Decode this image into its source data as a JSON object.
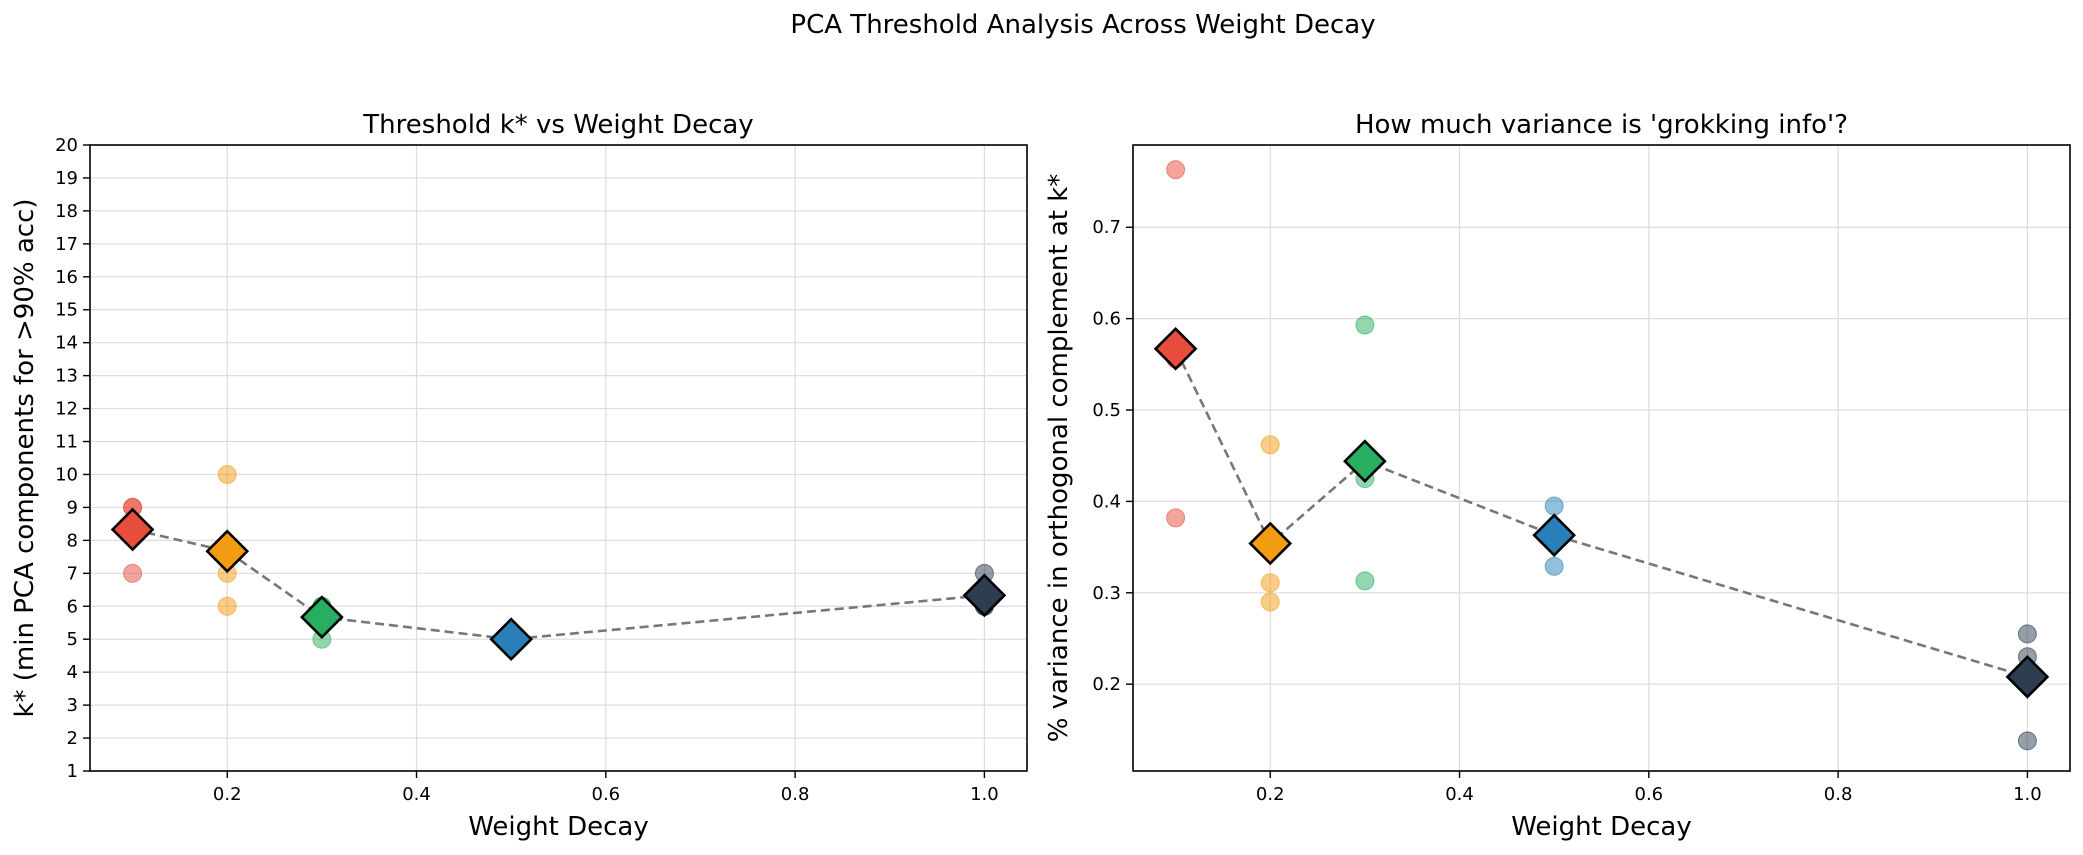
{
  "figure": {
    "suptitle": "PCA Threshold Analysis Across Weight Decay",
    "colors": {
      "0.1": "#e74c3c",
      "0.2": "#f39c12",
      "0.3": "#27ae60",
      "0.5": "#2980b9",
      "1.0": "#2c3e50"
    },
    "line_color": "#777777",
    "grid_color": "#dddddd"
  },
  "chart_data": [
    {
      "type": "scatter",
      "title": "Threshold k* vs Weight Decay",
      "xlabel": "Weight Decay",
      "ylabel": "k* (min PCA components for >90% acc)",
      "xlim": [
        0.055,
        1.045
      ],
      "ylim": [
        1,
        20
      ],
      "xticks": [
        0.2,
        0.4,
        0.6,
        0.8,
        1.0
      ],
      "xtick_labels": [
        "0.2",
        "0.4",
        "0.6",
        "0.8",
        "1.0"
      ],
      "yticks": [
        1,
        2,
        3,
        4,
        5,
        6,
        7,
        8,
        9,
        10,
        11,
        12,
        13,
        14,
        15,
        16,
        17,
        18,
        19,
        20
      ],
      "ytick_labels": [
        "1",
        "2",
        "3",
        "4",
        "5",
        "6",
        "7",
        "8",
        "9",
        "10",
        "11",
        "12",
        "13",
        "14",
        "15",
        "16",
        "17",
        "18",
        "19",
        "20"
      ],
      "grid": true,
      "individual_runs": [
        {
          "x": 0.1,
          "y": 9
        },
        {
          "x": 0.1,
          "y": 9
        },
        {
          "x": 0.1,
          "y": 7
        },
        {
          "x": 0.2,
          "y": 10
        },
        {
          "x": 0.2,
          "y": 7
        },
        {
          "x": 0.2,
          "y": 6
        },
        {
          "x": 0.3,
          "y": 6
        },
        {
          "x": 0.3,
          "y": 6
        },
        {
          "x": 0.3,
          "y": 5
        },
        {
          "x": 0.5,
          "y": 5
        },
        {
          "x": 0.5,
          "y": 5
        },
        {
          "x": 0.5,
          "y": 5
        },
        {
          "x": 1.0,
          "y": 7
        },
        {
          "x": 1.0,
          "y": 6
        },
        {
          "x": 1.0,
          "y": 6
        }
      ],
      "means": [
        {
          "x": 0.1,
          "y": 8.33
        },
        {
          "x": 0.2,
          "y": 7.67
        },
        {
          "x": 0.3,
          "y": 5.67
        },
        {
          "x": 0.5,
          "y": 5.0
        },
        {
          "x": 1.0,
          "y": 6.33
        }
      ]
    },
    {
      "type": "scatter",
      "title": "How much variance is 'grokking info'?",
      "xlabel": "Weight Decay",
      "ylabel": "% variance in orthogonal complement at k*",
      "xlim": [
        0.055,
        1.045
      ],
      "ylim": [
        0.105,
        0.79
      ],
      "xticks": [
        0.2,
        0.4,
        0.6,
        0.8,
        1.0
      ],
      "xtick_labels": [
        "0.2",
        "0.4",
        "0.6",
        "0.8",
        "1.0"
      ],
      "yticks": [
        0.2,
        0.3,
        0.4,
        0.5,
        0.6,
        0.7
      ],
      "ytick_labels": [
        "0.2",
        "0.3",
        "0.4",
        "0.5",
        "0.6",
        "0.7"
      ],
      "grid": true,
      "individual_runs": [
        {
          "x": 0.1,
          "y": 0.763
        },
        {
          "x": 0.1,
          "y": 0.556
        },
        {
          "x": 0.1,
          "y": 0.382
        },
        {
          "x": 0.2,
          "y": 0.462
        },
        {
          "x": 0.2,
          "y": 0.311
        },
        {
          "x": 0.2,
          "y": 0.29
        },
        {
          "x": 0.3,
          "y": 0.593
        },
        {
          "x": 0.3,
          "y": 0.425
        },
        {
          "x": 0.3,
          "y": 0.313
        },
        {
          "x": 0.5,
          "y": 0.395
        },
        {
          "x": 0.5,
          "y": 0.365
        },
        {
          "x": 0.5,
          "y": 0.329
        },
        {
          "x": 1.0,
          "y": 0.255
        },
        {
          "x": 1.0,
          "y": 0.23
        },
        {
          "x": 1.0,
          "y": 0.138
        }
      ],
      "means": [
        {
          "x": 0.1,
          "y": 0.567
        },
        {
          "x": 0.2,
          "y": 0.354
        },
        {
          "x": 0.3,
          "y": 0.444
        },
        {
          "x": 0.5,
          "y": 0.363
        },
        {
          "x": 1.0,
          "y": 0.208
        }
      ]
    }
  ]
}
